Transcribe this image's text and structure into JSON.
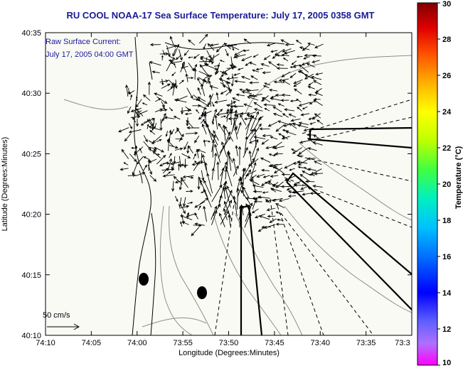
{
  "title": "RU COOL  NOAA-17  Sea Surface Temperature:  July 17, 2005 0358 GMT",
  "annotation": {
    "line1": "Raw Surface Current:",
    "line2": "July 17, 2005 04:00 GMT"
  },
  "scale_label": "50 cm/s",
  "colors": {
    "title": "#1a1a9a",
    "land_ocean": "#fafaf5",
    "coast": "#000000",
    "bathymetry": "#8c8c8c"
  },
  "axes": {
    "xlabel": "Longitude (Degrees:Minutes)",
    "ylabel": "Latitude (Degrees:Minutes)",
    "x_ticks": [
      "74:10",
      "74:05",
      "74:00",
      "73:55",
      "73:50",
      "73:45",
      "73:40",
      "73:35",
      "73:3"
    ],
    "y_ticks": [
      "40:35",
      "40:30",
      "40:25",
      "40:20",
      "40:15",
      "40:10"
    ]
  },
  "colorbar": {
    "label": "Temperature (°C)",
    "ticks": [
      "30",
      "28",
      "26",
      "24",
      "22",
      "20",
      "18",
      "16",
      "14",
      "12",
      "10"
    ],
    "range": [
      10,
      30
    ],
    "colormap": "jet-with-magenta-low"
  },
  "features": {
    "buoys": 2,
    "shipping_lanes": "dashed lines fanning south-east from harbor entrance",
    "vector_field": "surface current arrows concentrated near the harbor entrance"
  }
}
